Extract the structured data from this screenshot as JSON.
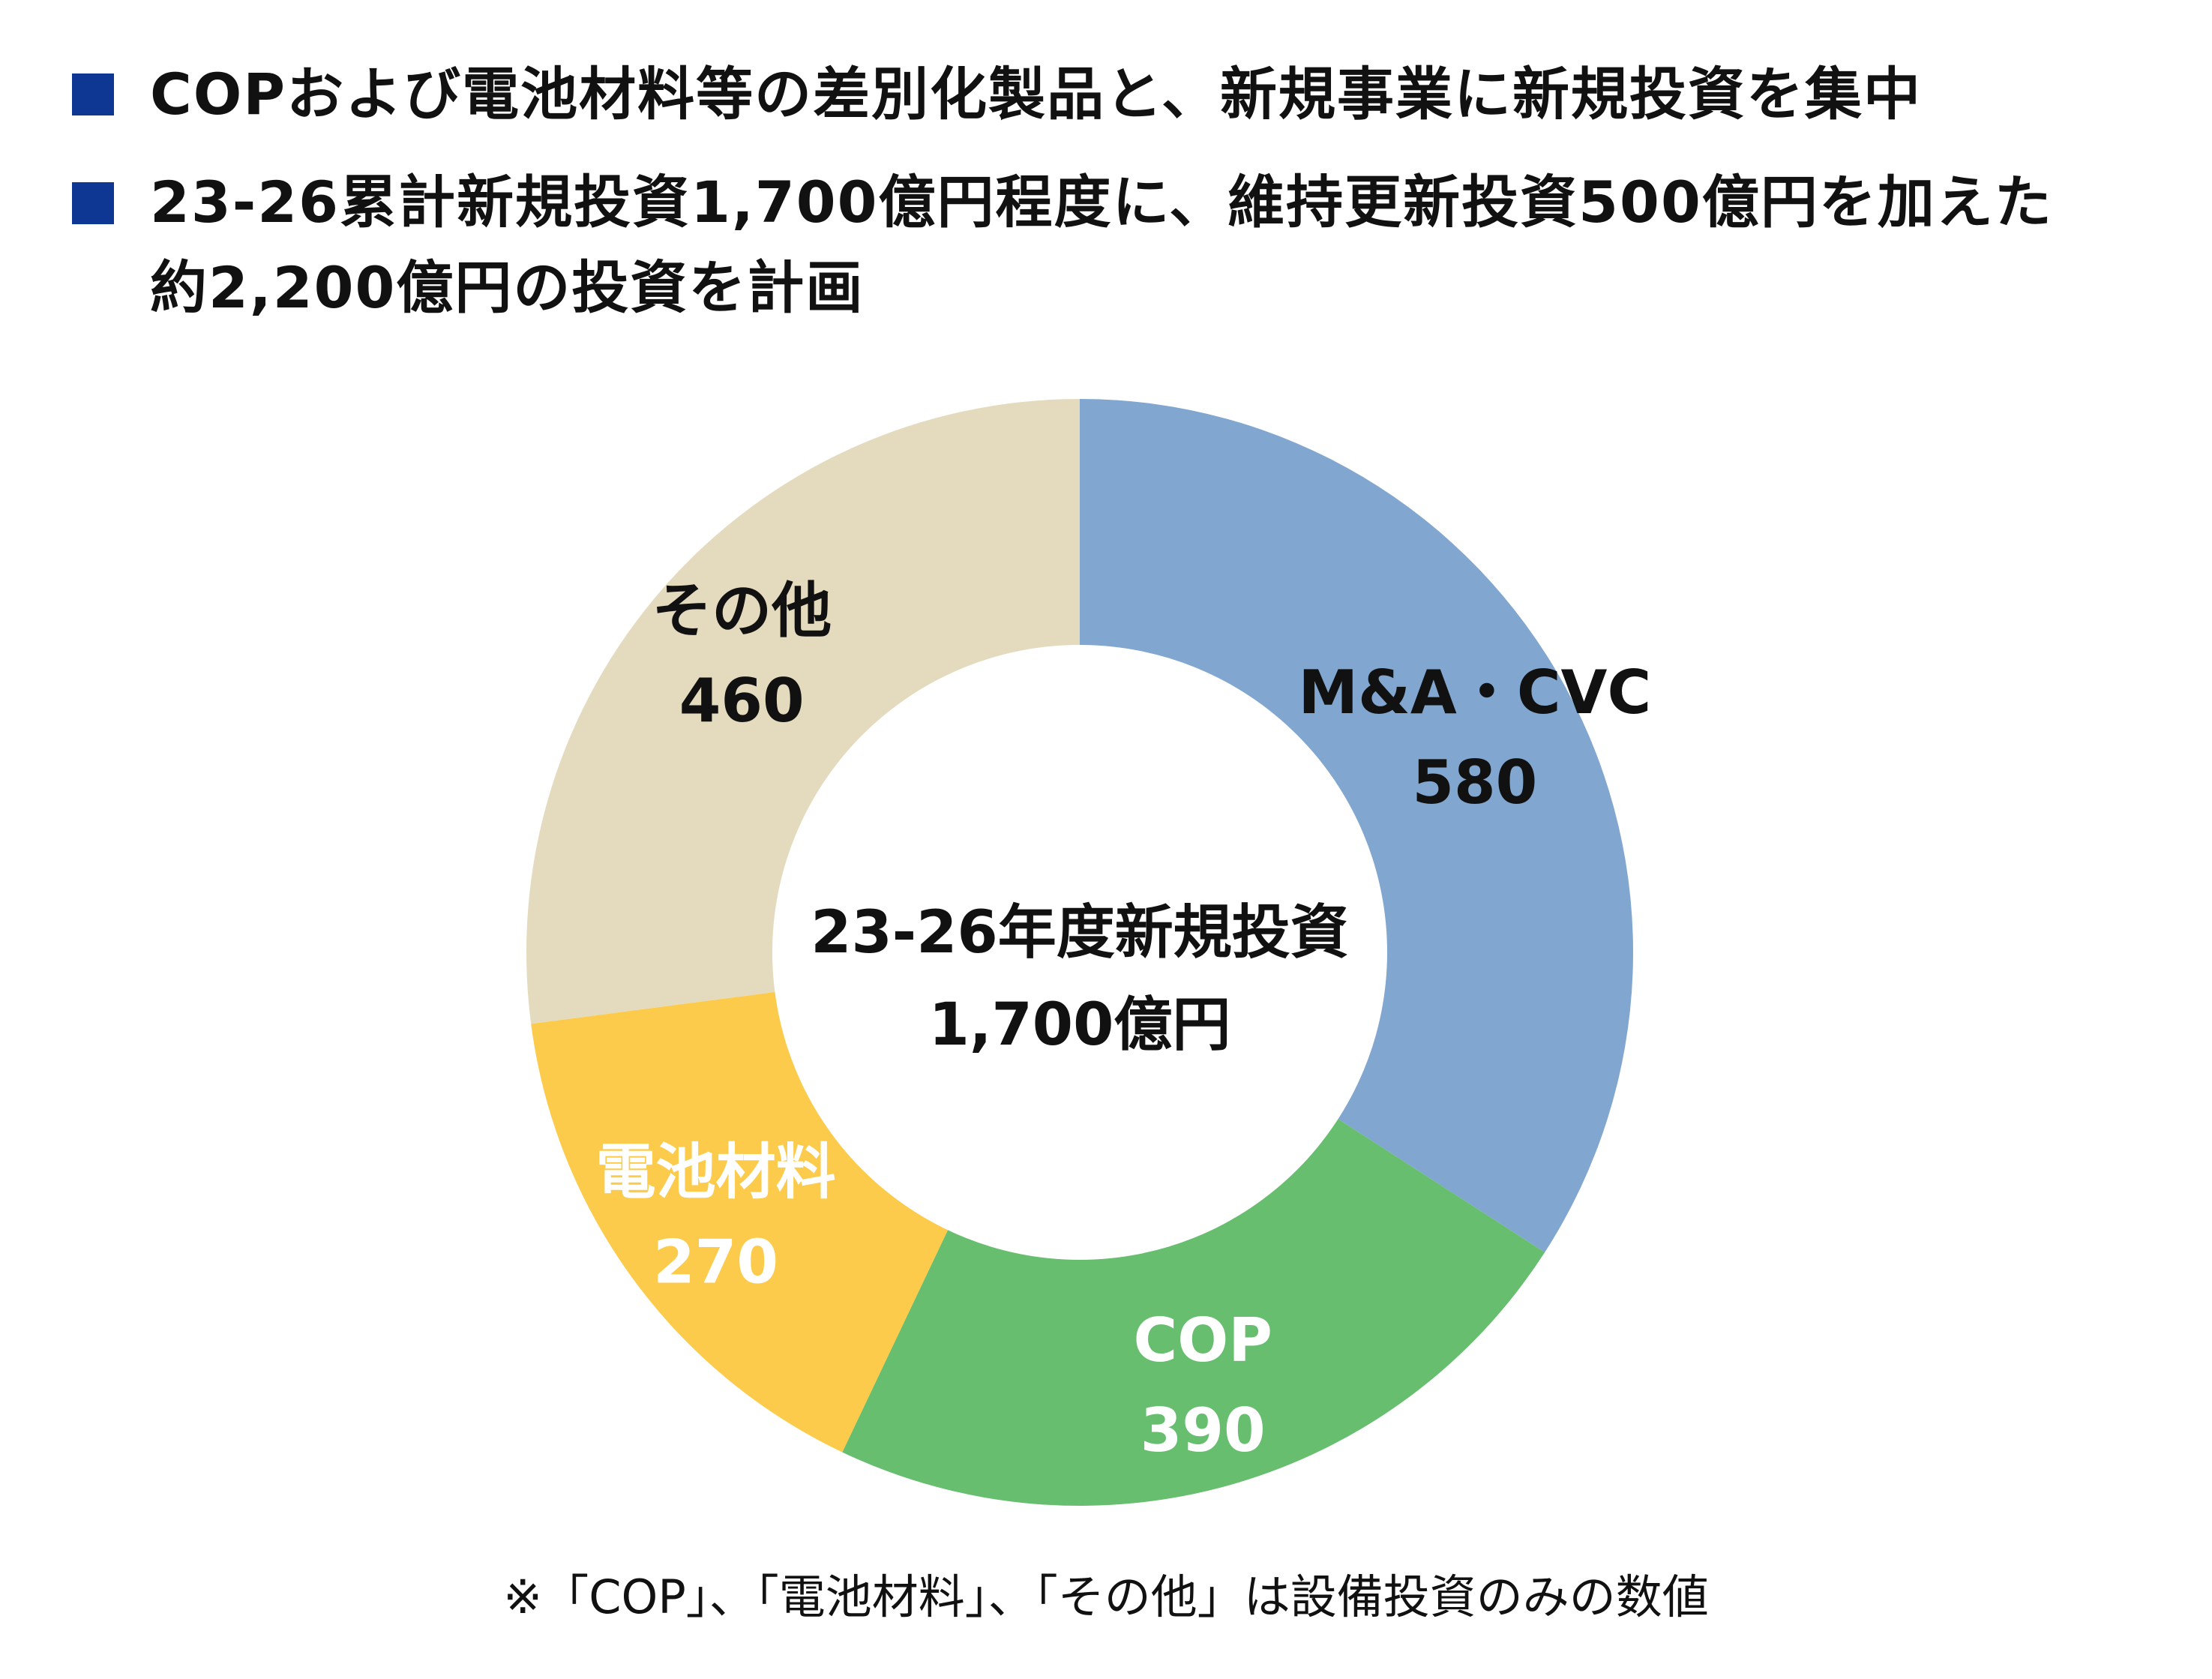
{
  "colors": {
    "bullet": "#0e3793",
    "center_fill": "#ffffff"
  },
  "bullets": [
    {
      "lines": [
        "COPおよび電池材料等の差別化製品と、新規事業に新規投資を集中"
      ]
    },
    {
      "lines": [
        "23-26累計新規投資1,700億円程度に、維持更新投資500億円を加えた",
        "約2,200億円の投資を計画"
      ]
    }
  ],
  "chart_data": {
    "type": "pie",
    "style": "donut",
    "start": "12 o'clock, clockwise",
    "center_text": [
      "23-26年度新規投資",
      "1,700億円"
    ],
    "slices": [
      {
        "name": "M&A・CVC",
        "value": 580,
        "value_label": "580",
        "color": "#81a6cf",
        "label_color": "#111111"
      },
      {
        "name": "COP",
        "value": 390,
        "value_label": "390",
        "color": "#66be6e",
        "label_color": "#ffffff"
      },
      {
        "name": "電池材料",
        "value": 270,
        "value_label": "270",
        "color": "#fccb4b",
        "label_color": "#ffffff"
      },
      {
        "name": "その他",
        "value": 460,
        "value_label": "460",
        "color": "#e4dbbf",
        "label_color": "#111111"
      }
    ]
  },
  "footnote": "※「COP」、「電池材料」、「その他」は設備投資のみの数値"
}
